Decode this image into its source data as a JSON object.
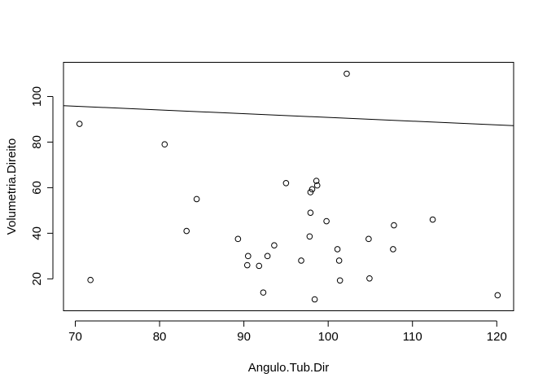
{
  "chart_data": {
    "type": "scatter",
    "title": "",
    "xlabel": "Angulo.Tub.Dir",
    "ylabel": "Volumetria.Direito",
    "xlim": [
      68.6,
      122.0
    ],
    "ylim": [
      6.0,
      115.0
    ],
    "xticks": [
      70,
      80,
      90,
      100,
      110,
      120
    ],
    "yticks": [
      20,
      40,
      60,
      80,
      100
    ],
    "grid": false,
    "legend": "none",
    "point_style": "open-circle",
    "regression_line": {
      "intercept": 107.2,
      "slope": -0.1638
    },
    "points": [
      {
        "x": 70.5,
        "y": 88
      },
      {
        "x": 71.8,
        "y": 19.5
      },
      {
        "x": 80.6,
        "y": 79
      },
      {
        "x": 83.2,
        "y": 41
      },
      {
        "x": 84.4,
        "y": 55
      },
      {
        "x": 89.3,
        "y": 37.5
      },
      {
        "x": 90.4,
        "y": 26
      },
      {
        "x": 90.5,
        "y": 30
      },
      {
        "x": 91.8,
        "y": 25.7
      },
      {
        "x": 92.3,
        "y": 14
      },
      {
        "x": 92.8,
        "y": 30
      },
      {
        "x": 93.6,
        "y": 34.7
      },
      {
        "x": 95.0,
        "y": 62
      },
      {
        "x": 96.8,
        "y": 28
      },
      {
        "x": 97.8,
        "y": 38.6
      },
      {
        "x": 97.9,
        "y": 49
      },
      {
        "x": 97.9,
        "y": 58
      },
      {
        "x": 98.1,
        "y": 59.3
      },
      {
        "x": 98.4,
        "y": 11
      },
      {
        "x": 98.6,
        "y": 63
      },
      {
        "x": 98.7,
        "y": 61
      },
      {
        "x": 99.8,
        "y": 45.3
      },
      {
        "x": 101.1,
        "y": 33
      },
      {
        "x": 101.3,
        "y": 28
      },
      {
        "x": 101.4,
        "y": 19.3
      },
      {
        "x": 102.2,
        "y": 110
      },
      {
        "x": 104.8,
        "y": 37.5
      },
      {
        "x": 104.9,
        "y": 20.2
      },
      {
        "x": 107.7,
        "y": 33
      },
      {
        "x": 107.8,
        "y": 43.5
      },
      {
        "x": 112.4,
        "y": 46
      },
      {
        "x": 120.1,
        "y": 12.8
      }
    ]
  },
  "colors": {
    "ink": "#000000",
    "background": "#ffffff"
  }
}
